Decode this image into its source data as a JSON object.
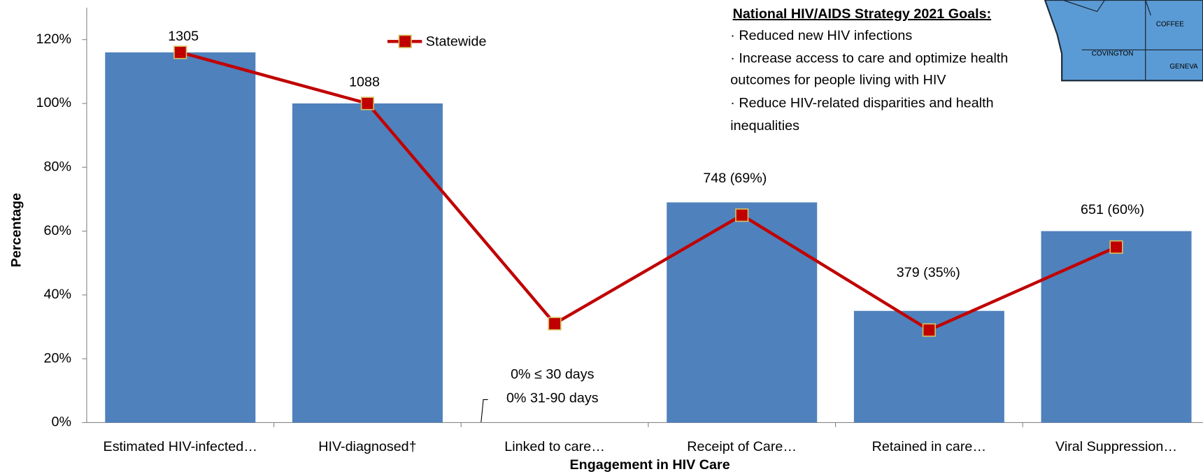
{
  "chart_data": {
    "type": "bar",
    "categories": [
      "Estimated HIV-infected…",
      "HIV-diagnosed†",
      "Linked to care…",
      "Receipt of Care…",
      "Retained in care…",
      "Viral Suppression…"
    ],
    "series": [
      {
        "type": "bar",
        "color": "#4f81bd",
        "values": [
          116,
          100,
          0,
          69,
          35,
          60
        ]
      },
      {
        "type": "line",
        "name": "Statewide",
        "color": "#c00000",
        "marker_color": "#c00000",
        "values": [
          116,
          100,
          31,
          65,
          29,
          55
        ]
      }
    ],
    "annotations": [
      "1305",
      "1088",
      "0% ≤ 30 days",
      "0% 31-90 days",
      "748 (69%)",
      "379 (35%)",
      "651 (60%)"
    ],
    "xlabel": "Engagement in HIV Care",
    "ylabel": "Percentage",
    "ylim": [
      0,
      130
    ],
    "yticks": [
      {
        "value": 0,
        "label": "0%"
      },
      {
        "value": 20,
        "label": "20%"
      },
      {
        "value": 40,
        "label": "40%"
      },
      {
        "value": 60,
        "label": "60%"
      },
      {
        "value": 80,
        "label": "80%"
      },
      {
        "value": 100,
        "label": "100%"
      },
      {
        "value": 120,
        "label": "120%"
      }
    ],
    "legend": "top"
  },
  "goals_box": {
    "title": "National HIV/AIDS Strategy 2021 Goals:",
    "lines": [
      "· Reduced new HIV infections",
      "· Increase access to care and optimize health",
      "outcomes for people living with HIV",
      "· Reduce HIV-related disparities and health",
      "inequalities"
    ]
  },
  "inset_map": {
    "labels": [
      "COFFEE",
      "COVINGTON",
      "GENEVA"
    ]
  }
}
